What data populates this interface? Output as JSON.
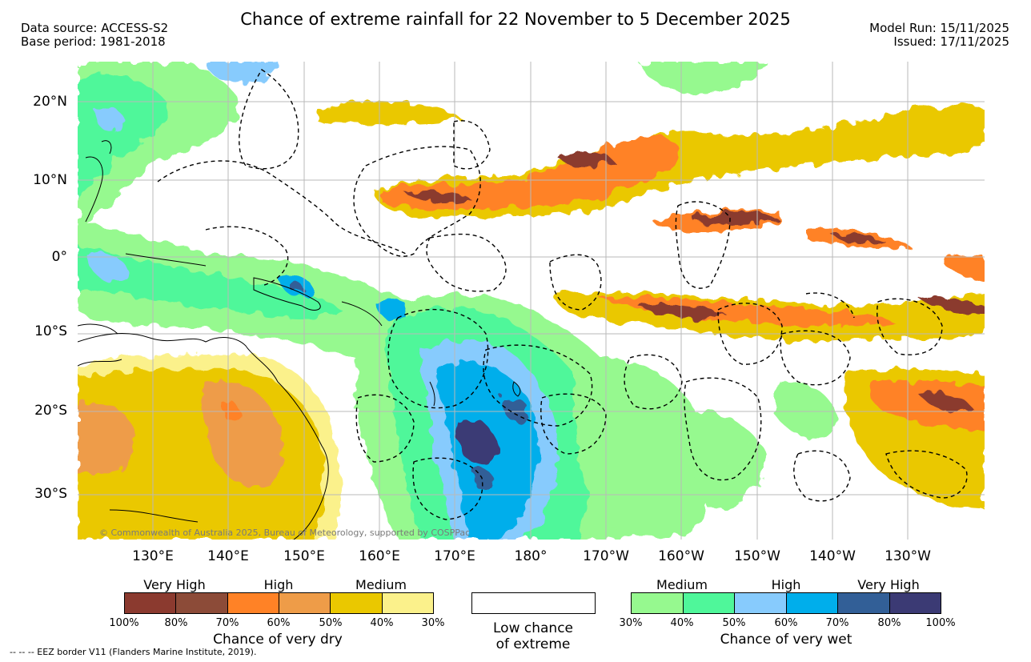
{
  "title": "Chance of extreme rainfall for 22 November to 5 December 2025",
  "header": {
    "data_source": "Data source: ACCESS-S2",
    "base_period": "Base period: 1981-2018",
    "model_run": "Model Run: 15/11/2025",
    "issued": "Issued: 17/11/2025"
  },
  "map": {
    "latitude_labels": [
      "20°N",
      "10°N",
      "0°",
      "10°S",
      "20°S",
      "30°S"
    ],
    "longitude_labels": [
      "130°E",
      "140°E",
      "150°E",
      "160°E",
      "170°E",
      "180°",
      "170°W",
      "160°W",
      "150°W",
      "140°W",
      "130°W"
    ],
    "copyright": "© Commonwealth of Australia 2025, Bureau of Meteorology, supported by COSPPac"
  },
  "legend": {
    "dry": {
      "categories": [
        "Very High",
        "High",
        "Medium"
      ],
      "percent_labels": [
        "100%",
        "80%",
        "70%",
        "60%",
        "50%",
        "40%",
        "30%"
      ],
      "colors": [
        "#8b3a2f",
        "#8c4b38",
        "#ff8226",
        "#ee9c48",
        "#eac800",
        "#fbf18b"
      ],
      "caption": "Chance of very dry"
    },
    "neutral": {
      "line1": "Low chance",
      "line2": "of extreme",
      "color": "#ffffff"
    },
    "wet": {
      "categories": [
        "Medium",
        "High",
        "Very High"
      ],
      "percent_labels": [
        "30%",
        "40%",
        "50%",
        "60%",
        "70%",
        "80%",
        "100%"
      ],
      "colors": [
        "#96f98f",
        "#4ff79a",
        "#87cbfd",
        "#00aeeb",
        "#325f97",
        "#3b3a74"
      ],
      "caption": "Chance of very wet"
    }
  },
  "footnote": "--  --  -- EEZ border V11 (Flanders Marine Institute, 2019)."
}
